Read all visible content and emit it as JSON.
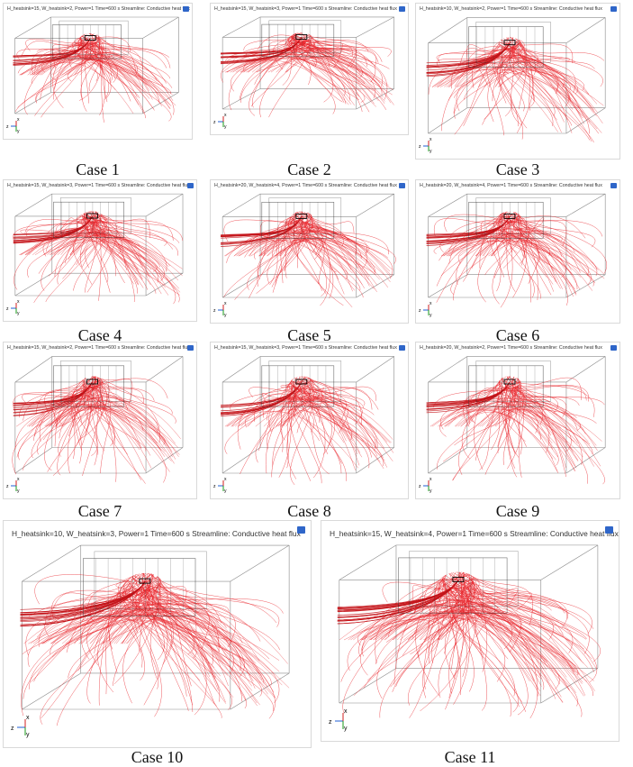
{
  "panels": [
    {
      "title": "H_heatsink=15, W_heatsink=2, Power=1 Time=600 s   Streamline: Conductive heat flux",
      "caption": "Case 1"
    },
    {
      "title": "H_heatsink=15, W_heatsink=3, Power=1 Time=600 s   Streamline: Conductive heat flux",
      "caption": "Case 2"
    },
    {
      "title": "H_heatsink=10, W_heatsink=2, Power=1 Time=600 s   Streamline: Conductive heat flux",
      "caption": "Case 3"
    },
    {
      "title": "H_heatsink=15, W_heatsink=3, Power=1 Time=600 s   Streamline: Conductive heat flux",
      "caption": "Case 4"
    },
    {
      "title": "H_heatsink=20, W_heatsink=4, Power=1 Time=600 s   Streamline: Conductive heat flux",
      "caption": "Case 5"
    },
    {
      "title": "H_heatsink=20, W_heatsink=4, Power=1 Time=600 s   Streamline: Conductive heat flux",
      "caption": "Case 6"
    },
    {
      "title": "H_heatsink=15, W_heatsink=2, Power=1 Time=600 s   Streamline: Conductive heat flux",
      "caption": "Case 7"
    },
    {
      "title": "H_heatsink=15, W_heatsink=3, Power=1 Time=600 s   Streamline: Conductive heat flux",
      "caption": "Case 8"
    },
    {
      "title": "H_heatsink=20, W_heatsink=2, Power=1 Time=600 s   Streamline: Conductive heat flux",
      "caption": "Case 9"
    },
    {
      "title": "H_heatsink=10, W_heatsink=3, Power=1 Time=600 s   Streamline: Conductive heat flux",
      "caption": "Case 10"
    },
    {
      "title": "H_heatsink=15, W_heatsink=4, Power=1 Time=600 s   Streamline: Conductive heat flux",
      "caption": "Case 11"
    }
  ],
  "axes_labels": {
    "z": "z",
    "x": "x",
    "y": "y"
  },
  "colors": {
    "streamline": "#e8242a",
    "streamline_dark": "#c4141a",
    "box": "#8a8a8a",
    "heatsink": "#333333",
    "axis_z": "#1f5fd6",
    "axis_x": "#d21f1f",
    "axis_y": "#1a9a1a"
  }
}
